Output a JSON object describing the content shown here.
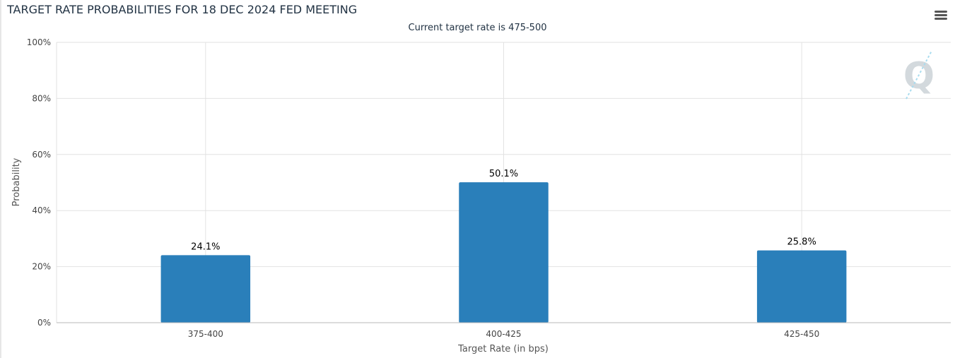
{
  "header": {
    "title": "TARGET RATE PROBABILITIES FOR 18 DEC 2024 FED MEETING",
    "menu_icon": "hamburger-menu-icon",
    "logo_icon": "q-watermark-logo"
  },
  "chart_data": {
    "type": "bar",
    "title": "TARGET RATE PROBABILITIES FOR 18 DEC 2024 FED MEETING",
    "subtitle": "Current target rate is 475-500",
    "categories": [
      "375-400",
      "400-425",
      "425-450"
    ],
    "values": [
      24.1,
      50.1,
      25.8
    ],
    "data_labels": [
      "24.1%",
      "50.1%",
      "25.8%"
    ],
    "xlabel": "Target Rate (in bps)",
    "ylabel": "Probability",
    "ylim": [
      0,
      100
    ],
    "yticks": [
      "0%",
      "20%",
      "40%",
      "60%",
      "80%",
      "100%"
    ],
    "grid": true,
    "legend": "none",
    "bar_color": "#2a7fba"
  }
}
